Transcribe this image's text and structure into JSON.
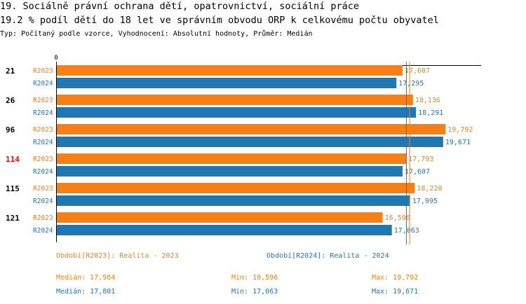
{
  "header": {
    "title_line1": "19. Sociálně právní ochrana dětí, opatrovnictví, sociální práce",
    "title_line2": "19.2 % podíl dětí do 18 let ve správním obvodu ORP k celkovému počtu obyvatel",
    "subtitle": "Typ: Počítaný podle vzorce, Vyhodnocení: Absolutní hodnoty, Průměr: Medián"
  },
  "colors": {
    "r2023": "#f77f14",
    "r2024": "#1f77b4",
    "highlight": "#ff0000"
  },
  "chart_data": {
    "type": "bar",
    "orientation": "horizontal",
    "axis_zero_label": "0",
    "categories": [
      "21",
      "26",
      "96",
      "114",
      "115",
      "121"
    ],
    "highlighted_category": "114",
    "series": [
      {
        "name": "R2023",
        "values": [
          17.607,
          18.136,
          19.792,
          17.793,
          18.228,
          16.596
        ],
        "labels": [
          "17,607",
          "18,136",
          "19,792",
          "17,793",
          "18,228",
          "16,596"
        ]
      },
      {
        "name": "R2024",
        "values": [
          17.295,
          18.291,
          19.671,
          17.607,
          17.995,
          17.063
        ],
        "labels": [
          "17,295",
          "18,291",
          "19,671",
          "17,607",
          "17,995",
          "17,063"
        ]
      }
    ],
    "median_lines": {
      "R2023": 17.964,
      "R2024": 17.801
    },
    "xlim": [
      0,
      21.6
    ]
  },
  "legend": {
    "r2023_period": "Období[R2023]: Realita - 2023",
    "r2024_period": "Období[R2024]: Realita - 2024",
    "r2023_median": "Medián: 17,964",
    "r2023_min": "Min: 16,596",
    "r2023_max": "Max: 19,792",
    "r2024_median": "Medián: 17,801",
    "r2024_min": "Min: 17,063",
    "r2024_max": "Max: 19,671"
  }
}
